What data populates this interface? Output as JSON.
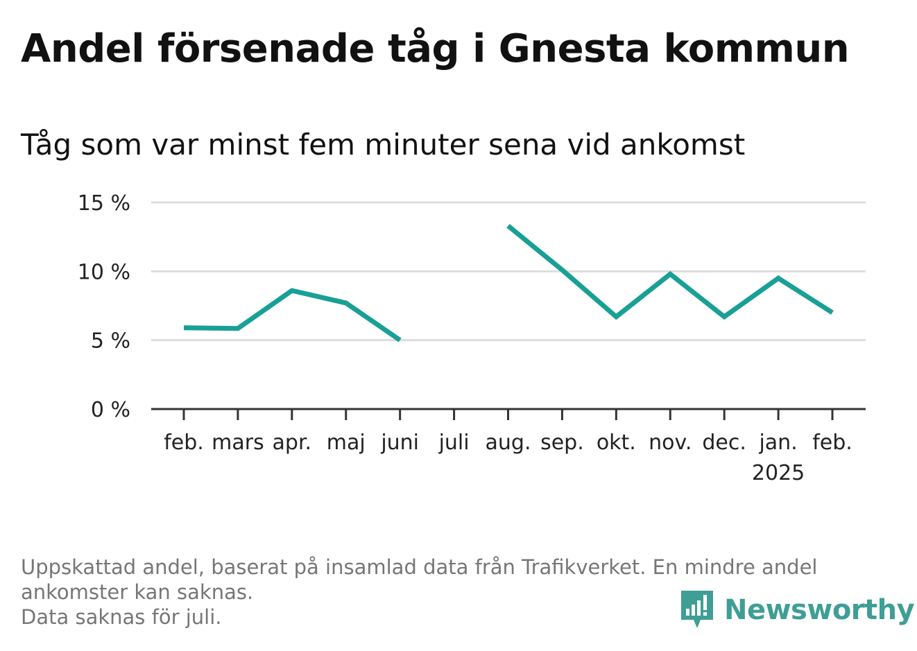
{
  "title": "Andel försenade tåg i Gnesta kommun",
  "subtitle": "Tåg som var minst fem minuter sena vid ankomst",
  "colors": {
    "line": "#19a096",
    "grid": "#dddddd",
    "axis": "#333333",
    "brand": "#3f9e96"
  },
  "chart_data": {
    "type": "line",
    "x": [
      "feb.",
      "mars",
      "apr.",
      "maj",
      "juni",
      "juli",
      "aug.",
      "sep.",
      "okt.",
      "nov.",
      "dec.",
      "jan.",
      "feb."
    ],
    "x_sublabels": [
      "",
      "",
      "",
      "",
      "",
      "",
      "",
      "",
      "",
      "",
      "",
      "2025",
      ""
    ],
    "series": [
      {
        "values": [
          5.9,
          5.85,
          8.6,
          7.7,
          5.0,
          null,
          13.3,
          10.1,
          6.7,
          9.8,
          6.7,
          9.5,
          7.0
        ]
      }
    ],
    "yticks": [
      0,
      5,
      10,
      15
    ],
    "ytick_labels": [
      "0 %",
      "5 %",
      "10 %",
      "15 %"
    ],
    "ylim": [
      0,
      15
    ],
    "grid": true
  },
  "footnote": {
    "line1": "Uppskattad andel, baserat på insamlad data från Trafikverket. En mindre andel",
    "line2": "ankomster kan saknas.",
    "line3": "Data saknas för juli."
  },
  "brand": {
    "name": "Newsworthy",
    "icon": "newsworthy-logo-icon"
  }
}
